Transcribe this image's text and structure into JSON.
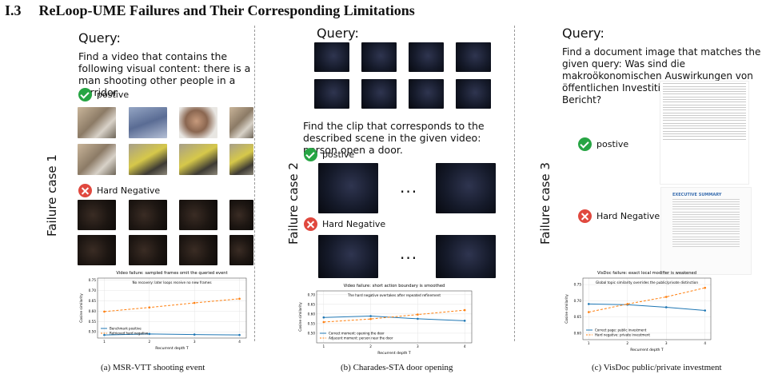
{
  "heading": {
    "number": "I.3",
    "title": "ReLoop-UME Failures and Their Corresponding Limitations"
  },
  "panels": [
    {
      "side_label": "Failure case 1",
      "query_label": "Query:",
      "query_text": "Find a video that contains the following visual content: there is a man shooting other people in a corridor",
      "positive_label": "postive",
      "negative_label": "Hard Negative",
      "caption": "(a) MSR-VTT shooting event",
      "chart_data": {
        "type": "line",
        "title": "Video failure: sampled frames omit the queried event",
        "annotation": "No recovery: later loops receive no new frames",
        "xlabel": "Recurrent depth T",
        "ylabel": "Cosine similarity",
        "x": [
          1,
          2,
          3,
          4
        ],
        "xticks": [
          "1",
          "2",
          "3",
          "4"
        ],
        "ylim": [
          0.47,
          0.76
        ],
        "yticks": [
          "0.50",
          "0.55",
          "0.60",
          "0.65",
          "0.70",
          "0.75"
        ],
        "series": [
          {
            "name": "Benchmark positive",
            "values": [
              0.485,
              0.49,
              0.487,
              0.485
            ],
            "color": "#1f77b4",
            "dash": false
          },
          {
            "name": "Retrieved hard negative",
            "values": [
              0.598,
              0.618,
              0.64,
              0.66
            ],
            "color": "#ff7f0e",
            "dash": true
          }
        ]
      }
    },
    {
      "side_label": "Failure case 2",
      "query_label": "Query:",
      "query_text": "Find the clip that corresponds to the described scene in the given video: person open a door.",
      "positive_label": "postive",
      "negative_label": "Hard Negative",
      "ellipsis": "...",
      "caption": "(b) Charades-STA door opening",
      "chart_data": {
        "type": "line",
        "title": "Video failure: short action boundary is smoothed",
        "annotation": "The hard negative overtakes after repeated refinement",
        "xlabel": "Recurrent depth T",
        "ylabel": "Cosine similarity",
        "x": [
          1,
          2,
          3,
          4
        ],
        "xticks": [
          "1",
          "2",
          "3",
          "4"
        ],
        "ylim": [
          0.45,
          0.72
        ],
        "yticks": [
          "0.50",
          "0.55",
          "0.60",
          "0.65",
          "0.70"
        ],
        "series": [
          {
            "name": "Correct moment: opening the door",
            "values": [
              0.582,
              0.589,
              0.575,
              0.565
            ],
            "color": "#1f77b4",
            "dash": false
          },
          {
            "name": "Adjacent moment: person near the door",
            "values": [
              0.558,
              0.574,
              0.597,
              0.62
            ],
            "color": "#ff7f0e",
            "dash": true
          }
        ]
      }
    },
    {
      "side_label": "Failure case 3",
      "query_label": "Query:",
      "query_text": "Find a document image that matches the given query: Was sind die makroökonomischen Auswirkungen von öffentlichen Investitionen laut dem Bericht?",
      "positive_label": "postive",
      "negative_label": "Hard Negative",
      "doc_heading": "EXECUTIVE SUMMARY",
      "caption": "(c) VisDoc public/private investment",
      "chart_data": {
        "type": "line",
        "title": "VisDoc failure: exact local modifier is weakened",
        "annotation": "Global topic similarity overrides the public/private distinction",
        "xlabel": "Recurrent depth T",
        "ylabel": "Cosine similarity",
        "x": [
          1,
          2,
          3,
          4
        ],
        "xticks": [
          "1",
          "2",
          "3",
          "4"
        ],
        "ylim": [
          0.58,
          0.77
        ],
        "yticks": [
          "0.60",
          "0.65",
          "0.70",
          "0.75"
        ],
        "series": [
          {
            "name": "Correct page: public investment",
            "values": [
              0.69,
              0.688,
              0.68,
              0.67
            ],
            "color": "#1f77b4",
            "dash": false
          },
          {
            "name": "Hard negative: private investment",
            "values": [
              0.665,
              0.69,
              0.712,
              0.74
            ],
            "color": "#ff7f0e",
            "dash": true
          }
        ]
      }
    }
  ]
}
